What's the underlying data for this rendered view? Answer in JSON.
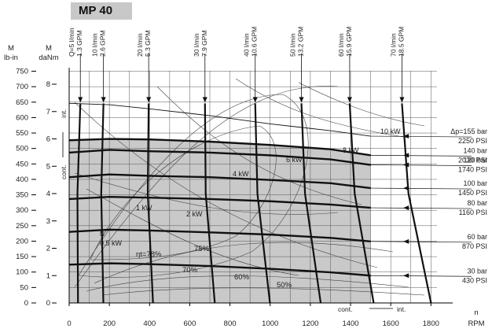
{
  "header": {
    "title": "MP 40"
  },
  "chart_data": {
    "type": "line",
    "title": "MP 40",
    "axes": {
      "x": {
        "label_lines": [
          "n",
          "RPM"
        ],
        "ticks": [
          0,
          200,
          400,
          600,
          800,
          1000,
          1200,
          1400,
          1600,
          1800
        ],
        "range": [
          0,
          1830
        ]
      },
      "y_lbin": {
        "label_lines": [
          "M",
          "lb-in"
        ],
        "ticks": [
          0,
          50,
          100,
          150,
          200,
          250,
          300,
          350,
          400,
          450,
          500,
          550,
          600,
          650,
          700,
          750
        ],
        "range": [
          0,
          751
        ]
      },
      "y_danm": {
        "label_lines": [
          "M",
          "daNm"
        ],
        "ticks": [
          0,
          1,
          2,
          3,
          4,
          5,
          6,
          7,
          8
        ],
        "range": [
          0,
          8.49
        ]
      }
    },
    "flow_lines": [
      {
        "lpm": "Q=5 l/min",
        "gpm": "1.3 GPM",
        "rpm": 40
      },
      {
        "lpm": "10 l/min",
        "gpm": "2.6 GPM",
        "rpm": 155
      },
      {
        "lpm": "20 l/min",
        "gpm": "5.3 GPM",
        "rpm": 380
      },
      {
        "lpm": "30 l/min",
        "gpm": "7.9 GPM",
        "rpm": 660
      },
      {
        "lpm": "40 l/min",
        "gpm": "10.6 GPM",
        "rpm": 910
      },
      {
        "lpm": "50 l/min",
        "gpm": "13.2 GPM",
        "rpm": 1140
      },
      {
        "lpm": "60 l/min",
        "gpm": "15.9 GPM",
        "rpm": 1380
      },
      {
        "lpm": "70 l/min",
        "gpm": "18.5 GPM",
        "rpm": 1640
      }
    ],
    "pressure_lines": [
      {
        "bar": "Δp=155 bar",
        "psi": "2250 PSI",
        "danm": [
          7.3,
          7.25,
          7.1,
          6.85,
          6.55,
          6.3,
          6.1
        ]
      },
      {
        "bar": "140 bar",
        "psi": "2030 PSI",
        "danm": [
          5.95,
          6.0,
          5.98,
          5.9,
          5.78,
          5.62,
          5.4
        ]
      },
      {
        "bar": "120 bar",
        "psi": "1740 PSI",
        "danm": [
          5.5,
          5.6,
          5.55,
          5.5,
          5.4,
          5.25,
          5.05
        ]
      },
      {
        "bar": "100 bar",
        "psi": "1450 PSI",
        "danm": [
          4.6,
          4.7,
          4.65,
          4.6,
          4.5,
          4.38,
          4.2
        ]
      },
      {
        "bar": "80 bar",
        "psi": "1160 PSI",
        "danm": [
          3.8,
          3.88,
          3.85,
          3.8,
          3.72,
          3.6,
          3.48
        ]
      },
      {
        "bar": "60 bar",
        "psi": "870 PSI",
        "danm": [
          2.6,
          2.68,
          2.65,
          2.58,
          2.5,
          2.38,
          2.25
        ]
      },
      {
        "bar": "30 bar",
        "psi": "430 PSI",
        "danm": [
          1.4,
          1.45,
          1.42,
          1.35,
          1.25,
          1.12,
          1.0
        ]
      }
    ],
    "pressure_line_rpm": [
      0,
      200,
      400,
      700,
      1000,
      1300,
      1500
    ],
    "annotations": {
      "power": [
        "0.5 kW",
        "1 kW",
        "2 kW",
        "4 kW",
        "6 kW",
        "8 kW",
        "10 kW"
      ],
      "efficiency": [
        "ηt=78%",
        "75%",
        "70%",
        "60%",
        "50%"
      ],
      "zones": [
        "int.",
        "cont.",
        "cont.",
        "int."
      ],
      "n_marker": "N"
    }
  }
}
